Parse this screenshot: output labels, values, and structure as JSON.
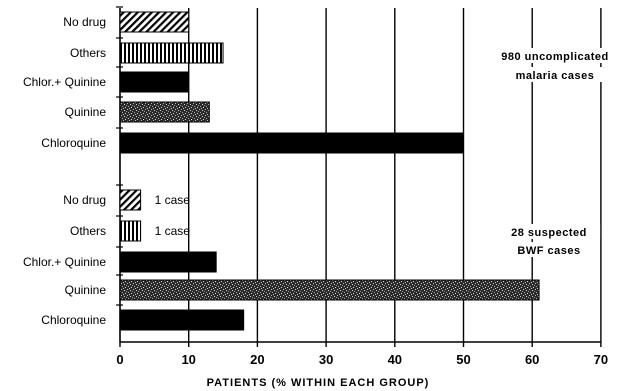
{
  "chart_data": {
    "type": "bar",
    "orientation": "horizontal",
    "xlabel": "PATIENTS  (%  WITHIN  EACH  GROUP)",
    "xlim": [
      0,
      70
    ],
    "xticks": [
      "0",
      "10",
      "20",
      "30",
      "40",
      "50",
      "60",
      "70"
    ],
    "grid": "vertical lines at 10, 20, 30, 40, 50, 60, 70",
    "groups": [
      {
        "note_lines": [
          "980  uncomplicated",
          "malaria cases"
        ],
        "bars": [
          {
            "label": "No drug",
            "value": 10,
            "pattern": "diagonal-hatch"
          },
          {
            "label": "Others",
            "value": 15,
            "pattern": "vertical-stripes"
          },
          {
            "label": "Chlor.+ Quinine",
            "value": 10,
            "pattern": "solid"
          },
          {
            "label": "Quinine",
            "value": 13,
            "pattern": "stipple"
          },
          {
            "label": "Chloroquine",
            "value": 50,
            "pattern": "solid"
          }
        ]
      },
      {
        "note_lines": [
          "28  suspected",
          "BWF  cases"
        ],
        "bars": [
          {
            "label": "No drug",
            "value": 3,
            "pattern": "diagonal-hatch",
            "annotation": "1 case"
          },
          {
            "label": "Others",
            "value": 3,
            "pattern": "vertical-stripes",
            "annotation": "1 case"
          },
          {
            "label": "Chlor.+ Quinine",
            "value": 14,
            "pattern": "solid"
          },
          {
            "label": "Quinine",
            "value": 61,
            "pattern": "stipple"
          },
          {
            "label": "Chloroquine",
            "value": 18,
            "pattern": "solid"
          }
        ]
      }
    ]
  },
  "colors": {
    "bar_fill": "#000000",
    "background": "#ffffff",
    "stipple_base": "#2b2b2b",
    "stipple_dots": "#bdbdbd"
  }
}
